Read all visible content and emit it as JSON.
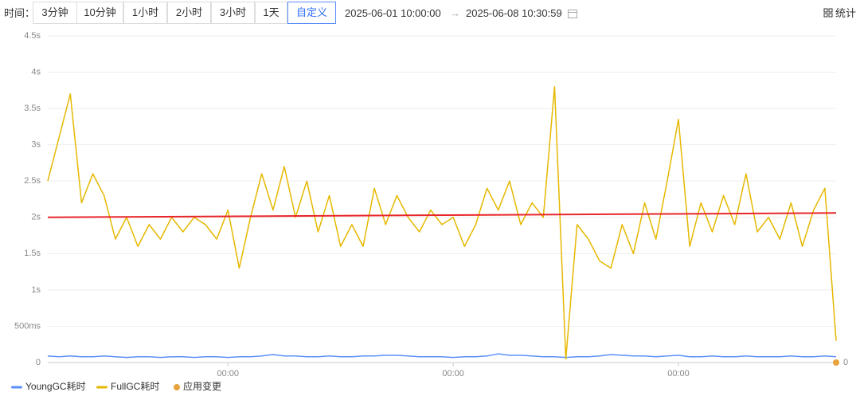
{
  "toolbar": {
    "label": "时间：",
    "buttons": [
      "3分钟",
      "10分钟",
      "1小时",
      "2小时",
      "3小时",
      "1天",
      "自定义"
    ],
    "selected": 6,
    "start": "2025-06-01 10:00:00",
    "arrow": "→",
    "end": "2025-06-08 10:30:59",
    "stats": "统计"
  },
  "chart_data": {
    "type": "line",
    "categories": [
      null,
      null,
      null,
      null,
      null,
      null,
      null,
      null,
      null,
      null,
      null,
      null,
      null,
      null,
      null,
      null,
      "00:00",
      null,
      null,
      null,
      null,
      null,
      null,
      null,
      null,
      null,
      null,
      null,
      null,
      null,
      null,
      null,
      null,
      null,
      null,
      null,
      "00:00",
      null,
      null,
      null,
      null,
      null,
      null,
      null,
      null,
      null,
      null,
      null,
      null,
      null,
      null,
      null,
      null,
      null,
      null,
      null,
      "00:00",
      null,
      null,
      null,
      null,
      null,
      null,
      null,
      null,
      null,
      null,
      null,
      null,
      null,
      null
    ],
    "series": [
      {
        "name": "YoungGC耗时",
        "color": "#5b8ff9",
        "values": [
          0.09,
          0.08,
          0.09,
          0.08,
          0.08,
          0.09,
          0.08,
          0.07,
          0.08,
          0.08,
          0.07,
          0.08,
          0.08,
          0.07,
          0.08,
          0.08,
          0.07,
          0.08,
          0.08,
          0.09,
          0.11,
          0.09,
          0.09,
          0.08,
          0.08,
          0.09,
          0.08,
          0.08,
          0.09,
          0.09,
          0.1,
          0.1,
          0.09,
          0.08,
          0.08,
          0.08,
          0.07,
          0.08,
          0.08,
          0.09,
          0.12,
          0.1,
          0.1,
          0.09,
          0.08,
          0.08,
          0.07,
          0.08,
          0.08,
          0.09,
          0.11,
          0.1,
          0.09,
          0.09,
          0.08,
          0.09,
          0.1,
          0.08,
          0.08,
          0.09,
          0.08,
          0.08,
          0.09,
          0.08,
          0.08,
          0.08,
          0.09,
          0.08,
          0.08,
          0.09,
          0.08
        ]
      },
      {
        "name": "FullGC耗时",
        "color": "#e6b800",
        "values": [
          2.5,
          3.1,
          3.7,
          2.2,
          2.6,
          2.3,
          1.7,
          2.0,
          1.6,
          1.9,
          1.7,
          2.0,
          1.8,
          2.0,
          1.9,
          1.7,
          2.1,
          1.3,
          2.0,
          2.6,
          2.1,
          2.7,
          2.0,
          2.5,
          1.8,
          2.3,
          1.6,
          1.9,
          1.6,
          2.4,
          1.9,
          2.3,
          2.0,
          1.8,
          2.1,
          1.9,
          2.0,
          1.6,
          1.9,
          2.4,
          2.1,
          2.5,
          1.9,
          2.2,
          2.0,
          3.8,
          0.05,
          1.9,
          1.7,
          1.4,
          1.3,
          1.9,
          1.5,
          2.2,
          1.7,
          2.5,
          3.35,
          1.6,
          2.2,
          1.8,
          2.3,
          1.9,
          2.6,
          1.8,
          2.0,
          1.7,
          2.2,
          1.6,
          2.1,
          2.4,
          0.3
        ]
      },
      {
        "name": "应用变更",
        "color": "#e8a33d",
        "axis": "y2",
        "values": [
          null,
          null,
          null,
          null,
          null,
          null,
          null,
          null,
          null,
          null,
          null,
          null,
          null,
          null,
          null,
          null,
          null,
          null,
          null,
          null,
          null,
          null,
          null,
          null,
          null,
          null,
          null,
          null,
          null,
          null,
          null,
          null,
          null,
          null,
          null,
          null,
          null,
          null,
          null,
          null,
          null,
          null,
          null,
          null,
          null,
          null,
          null,
          null,
          null,
          null,
          null,
          null,
          null,
          null,
          null,
          null,
          null,
          null,
          null,
          null,
          null,
          null,
          null,
          null,
          null,
          null,
          null,
          null,
          null,
          null,
          0
        ]
      }
    ],
    "trend_line": {
      "color": "#e8262a",
      "values": [
        2.0,
        2.06
      ]
    },
    "ylim": [
      0,
      4.5
    ],
    "yticks": [
      0,
      {
        "value": 0.5,
        "label": "500ms"
      },
      {
        "value": 1,
        "label": "1s"
      },
      {
        "value": 1.5,
        "label": "1.5s"
      },
      {
        "value": 2,
        "label": "2s"
      },
      {
        "value": 2.5,
        "label": "2.5s"
      },
      {
        "value": 3,
        "label": "3s"
      },
      {
        "value": 3.5,
        "label": "3.5s"
      },
      {
        "value": 4,
        "label": "4s"
      },
      {
        "value": 4.5,
        "label": "4.5s"
      }
    ],
    "y2lim": [
      0,
      1
    ],
    "y2ticks": [
      0
    ],
    "grid": true
  }
}
